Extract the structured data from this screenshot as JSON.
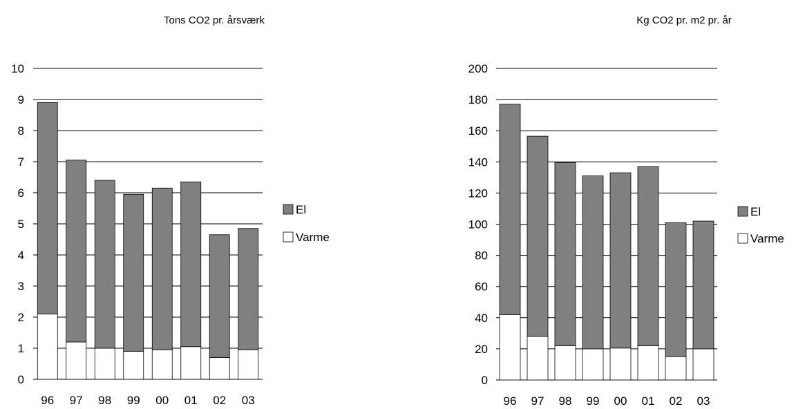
{
  "colors": {
    "el": "#808080",
    "varme": "#ffffff",
    "outline": "#000000",
    "grid": "#000000"
  },
  "chart_data": [
    {
      "type": "bar",
      "stacked": true,
      "title": "Tons CO2 pr. årsværk",
      "categories": [
        "96",
        "97",
        "98",
        "99",
        "00",
        "01",
        "02",
        "03"
      ],
      "series": [
        {
          "name": "Varme",
          "values": [
            2.1,
            1.2,
            1.0,
            0.9,
            0.95,
            1.05,
            0.7,
            0.95
          ]
        },
        {
          "name": "El",
          "values": [
            6.8,
            5.85,
            5.4,
            5.05,
            5.2,
            5.3,
            3.95,
            3.9
          ]
        }
      ],
      "yticks": [
        "0",
        "1",
        "2",
        "3",
        "4",
        "5",
        "6",
        "7",
        "8",
        "9",
        "10"
      ],
      "ylim": [
        0,
        10
      ],
      "grid": true,
      "legend_position": "right"
    },
    {
      "type": "bar",
      "stacked": true,
      "title": "Kg CO2 pr. m2 pr. år",
      "categories": [
        "96",
        "97",
        "98",
        "99",
        "00",
        "01",
        "02",
        "03"
      ],
      "series": [
        {
          "name": "Varme",
          "values": [
            42,
            28,
            22,
            20,
            20.5,
            22,
            15,
            20
          ]
        },
        {
          "name": "El",
          "values": [
            135,
            128.5,
            117.5,
            111,
            112.5,
            115,
            86,
            82
          ]
        }
      ],
      "yticks": [
        "0",
        "20",
        "40",
        "60",
        "80",
        "100",
        "120",
        "140",
        "160",
        "180",
        "200"
      ],
      "ylim": [
        0,
        200
      ],
      "grid": true,
      "legend_position": "right"
    }
  ]
}
